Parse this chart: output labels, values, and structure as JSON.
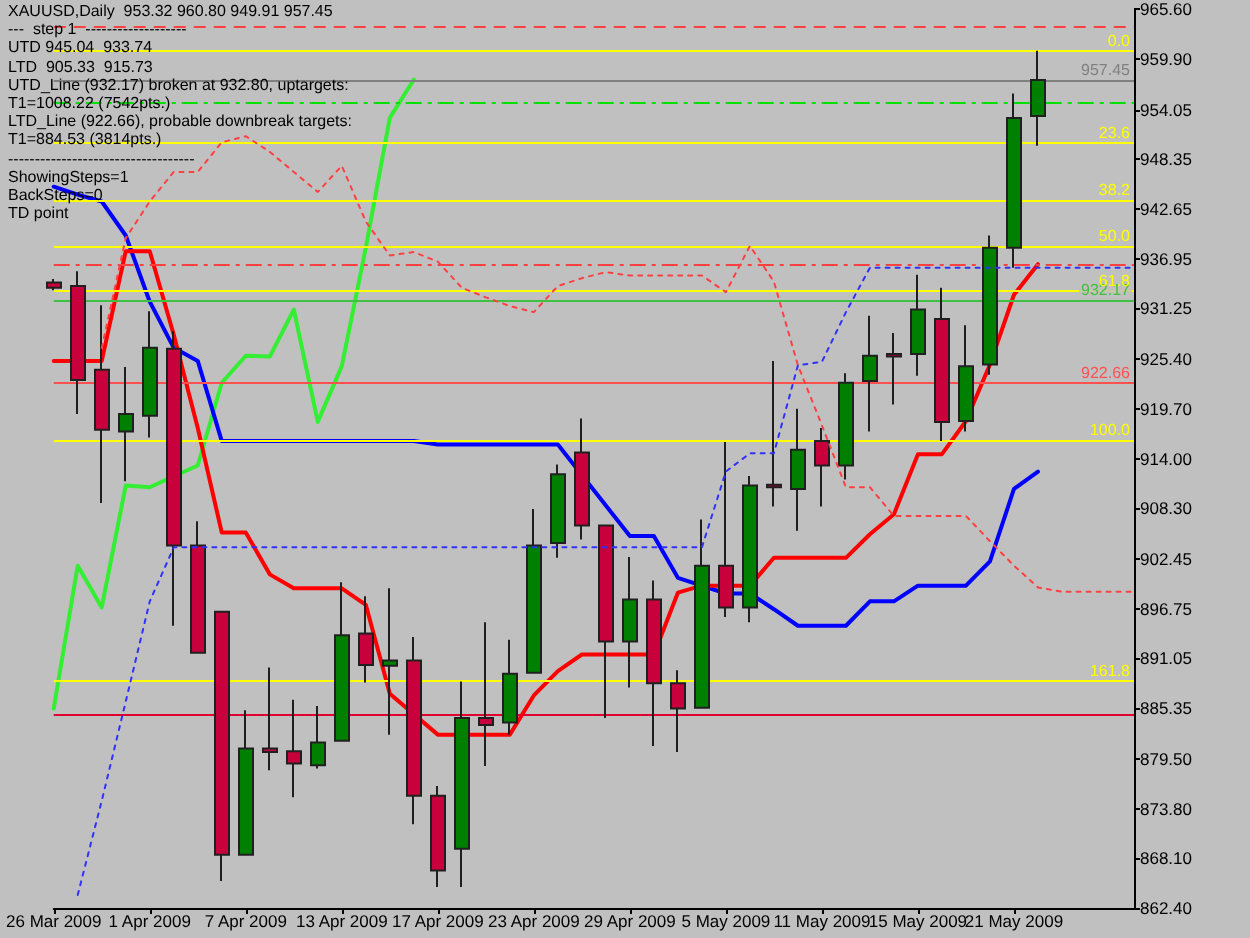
{
  "chart_data": {
    "type": "candlestick",
    "title": "XAUUSD,Daily  953.32 960.80 949.91 957.45",
    "annotations": [
      "---  step 1  -------------------",
      "UTD 945.04  933.74",
      "LTD  905.33  915.73",
      "UTD_Line (932.17) broken at 932.80, uptargets:",
      "T1=1008.22 (7542pts.)",
      "LTD_Line (922.66), probable downbreak targets:",
      "T1=884.53 (3814pts.)",
      "-----------------------------------",
      "ShowingSteps=1",
      "BackSteps=0",
      "TD point",
      {
        "text": "0.0",
        "y": 960.8
      },
      {
        "text": "23.6",
        "y": 950.25
      },
      {
        "text": "38.2",
        "y": 943.7
      },
      {
        "text": "50.0",
        "y": 938.45
      },
      {
        "text": "61.8",
        "y": 933.2
      },
      {
        "text": "100.0",
        "y": 916.1
      },
      {
        "text": "161.8",
        "y": 888.5
      }
    ],
    "categories": [
      "26 Mar 2009",
      null,
      null,
      null,
      "1 Apr 2009",
      null,
      null,
      null,
      "7 Apr 2009",
      null,
      null,
      null,
      "13 Apr 2009",
      null,
      null,
      null,
      "17 Apr 2009",
      null,
      null,
      null,
      "23 Apr 2009",
      null,
      null,
      null,
      "29 Apr 2009",
      null,
      null,
      null,
      "5 May 2009",
      null,
      null,
      null,
      "11 May 2009",
      null,
      null,
      null,
      "15 May 2009",
      null,
      null,
      null,
      "21 May 2009",
      null,
      null,
      null,
      null,
      null
    ],
    "ylim": [
      862.4,
      965.6
    ],
    "yticks": [
      {
        "value": 965.6,
        "label": "965.60"
      },
      {
        "value": 959.9,
        "label": "959.90"
      },
      {
        "value": 954.05,
        "label": "954.05"
      },
      {
        "value": 948.35,
        "label": "948.35"
      },
      {
        "value": 942.65,
        "label": "942.65"
      },
      {
        "value": 936.95,
        "label": "936.95"
      },
      {
        "value": 931.25,
        "label": "931.25"
      },
      {
        "value": 925.4,
        "label": "925.40"
      },
      {
        "value": 919.7,
        "label": "919.70"
      },
      {
        "value": 914.0,
        "label": "914.00"
      },
      {
        "value": 908.3,
        "label": "908.30"
      },
      {
        "value": 902.45,
        "label": "902.45"
      },
      {
        "value": 896.75,
        "label": "896.75"
      },
      {
        "value": 891.05,
        "label": "891.05"
      },
      {
        "value": 885.35,
        "label": "885.35"
      },
      {
        "value": 879.5,
        "label": "879.50"
      },
      {
        "value": 873.8,
        "label": "873.80"
      },
      {
        "value": 868.1,
        "label": "868.10"
      },
      {
        "value": 862.4,
        "label": "862.40"
      }
    ],
    "marker": "none",
    "ref_lines": [
      {
        "axis": "y",
        "value": 963.5,
        "color": "#ff4040",
        "line_style": "dashed"
      },
      {
        "axis": "y",
        "value": 960.8,
        "color": "#ffff00"
      },
      {
        "axis": "y",
        "value": 957.45,
        "label": "957.45",
        "color": "#808080"
      },
      {
        "axis": "y",
        "value": 954.8,
        "color": "#00e000",
        "line_style": "dashdot"
      },
      {
        "axis": "y",
        "value": 950.25,
        "color": "#ffff00"
      },
      {
        "axis": "y",
        "value": 943.7,
        "color": "#ffff00"
      },
      {
        "axis": "y",
        "value": 938.45,
        "color": "#ffff00"
      },
      {
        "axis": "y",
        "value": 936.2,
        "color": "#ff4040",
        "line_style": "dashdot"
      },
      {
        "axis": "y",
        "value": 933.2,
        "color": "#ffff00"
      },
      {
        "axis": "y",
        "value": 932.17,
        "label": "932.17",
        "color": "#40c040"
      },
      {
        "axis": "y",
        "value": 922.66,
        "label": "922.66",
        "color": "#ff5050"
      },
      {
        "axis": "y",
        "value": 916.1,
        "color": "#ffff00"
      },
      {
        "axis": "y",
        "value": 888.5,
        "color": "#ffff00"
      },
      {
        "axis": "y",
        "value": 884.53,
        "color": "#e00030"
      }
    ],
    "series": [
      {
        "type": "line",
        "color": "#ff4040",
        "line_style": "dotted",
        "values": [
          null,
          null,
          926.7,
          939.3,
          943.5,
          946.9,
          946.9,
          950.3,
          951.0,
          949.2,
          946.9,
          944.6,
          947.6,
          941.2,
          937.3,
          937.7,
          936.6,
          933.6,
          932.5,
          931.5,
          930.8,
          933.8,
          934.7,
          935.4,
          935.0,
          935.0,
          935.0,
          935.0,
          933.1,
          938.4,
          934.3,
          924.7,
          917.8,
          910.7,
          910.7,
          907.4,
          907.4,
          907.4,
          907.4,
          904.5,
          901.7,
          899.2,
          898.7,
          898.7,
          898.7,
          898.7
        ]
      },
      {
        "type": "line",
        "color": "#3030ff",
        "line_style": "dotted",
        "values": [
          null,
          863.9,
          874.7,
          886.1,
          897.6,
          903.8,
          903.8,
          903.8,
          903.8,
          903.8,
          903.8,
          903.8,
          903.8,
          903.8,
          903.8,
          903.8,
          903.8,
          903.8,
          903.8,
          903.8,
          903.8,
          903.8,
          903.8,
          903.8,
          903.8,
          903.8,
          903.8,
          903.8,
          912.5,
          914.6,
          914.6,
          924.7,
          925.1,
          930.8,
          935.9,
          935.9,
          935.9,
          935.9,
          935.9,
          935.9,
          935.9,
          935.9,
          935.9,
          935.9,
          935.9,
          935.9
        ]
      },
      {
        "type": "line",
        "color": "#33ee33",
        "line_style": "solid",
        "values": [
          885.3,
          901.7,
          896.9,
          910.9,
          910.7,
          null,
          913.2,
          922.7,
          925.8,
          925.7,
          931.1,
          918.2,
          924.6,
          938.2,
          953.1,
          957.5,
          null,
          null,
          null,
          null,
          null,
          null,
          null,
          null,
          null,
          null,
          null,
          null,
          null,
          null,
          null,
          null,
          null,
          null,
          null,
          null,
          null,
          null,
          null,
          null,
          null,
          null,
          null,
          null,
          null,
          null
        ]
      },
      {
        "type": "line",
        "color": "#0000ff",
        "line_style": "solid",
        "values": [
          945.2,
          944.3,
          943.5,
          939.6,
          932.0,
          926.7,
          925.2,
          916.0,
          916.0,
          916.0,
          916.0,
          916.0,
          916.0,
          916.0,
          916.0,
          916.0,
          915.6,
          915.6,
          915.6,
          915.6,
          915.6,
          915.6,
          null,
          null,
          905.1,
          905.1,
          900.3,
          null,
          898.5,
          898.5,
          896.7,
          894.8,
          894.8,
          894.8,
          897.6,
          897.6,
          899.4,
          899.4,
          899.4,
          902.2,
          910.5,
          912.5,
          null,
          null,
          null,
          null
        ]
      },
      {
        "type": "line",
        "color": "#ff0000",
        "line_style": "solid",
        "values": [
          925.2,
          925.2,
          925.2,
          937.8,
          937.8,
          928.2,
          917.5,
          905.5,
          905.5,
          900.7,
          899.1,
          899.1,
          899.1,
          897.2,
          887.0,
          null,
          882.3,
          882.3,
          882.3,
          882.3,
          886.8,
          889.6,
          891.5,
          891.5,
          891.5,
          891.5,
          898.6,
          899.4,
          899.4,
          899.4,
          902.6,
          902.6,
          902.6,
          902.6,
          905.3,
          907.6,
          914.5,
          914.5,
          918.3,
          924.8,
          932.8,
          936.3,
          null,
          null,
          null,
          null
        ]
      },
      {
        "ohlc": [
          [
            934.2,
            934.6,
            933.3,
            933.6
          ],
          [
            933.8,
            935.5,
            919.1,
            923.0
          ],
          [
            924.2,
            931.6,
            908.9,
            917.3
          ],
          [
            917.1,
            924.5,
            911.4,
            919.1
          ],
          [
            918.9,
            930.9,
            916.4,
            926.7
          ],
          [
            926.6,
            928.6,
            894.8,
            904.0
          ],
          [
            904.0,
            906.8,
            891.7,
            891.7
          ],
          [
            896.4,
            896.5,
            865.5,
            868.5
          ],
          [
            868.5,
            885.1,
            868.5,
            880.7
          ],
          [
            880.7,
            890.0,
            878.2,
            880.3
          ],
          [
            880.4,
            886.3,
            875.1,
            879.0
          ],
          [
            878.8,
            885.6,
            878.4,
            881.4
          ],
          [
            881.6,
            899.8,
            881.5,
            893.7
          ],
          [
            893.9,
            898.2,
            888.3,
            890.3
          ],
          [
            890.2,
            899.1,
            882.3,
            890.8
          ],
          [
            890.8,
            893.5,
            872.0,
            875.3
          ],
          [
            875.3,
            876.4,
            864.8,
            866.7
          ],
          [
            869.2,
            888.4,
            864.8,
            884.2
          ],
          [
            884.2,
            895.2,
            878.7,
            883.4
          ],
          [
            883.7,
            893.2,
            882.3,
            889.3
          ],
          [
            889.4,
            908.2,
            889.4,
            904.0
          ],
          [
            904.3,
            913.3,
            902.6,
            912.2
          ],
          [
            914.7,
            918.6,
            904.7,
            906.3
          ],
          [
            906.3,
            906.3,
            884.2,
            893.0
          ],
          [
            893.0,
            902.7,
            887.7,
            897.8
          ],
          [
            897.8,
            900.0,
            881.0,
            888.2
          ],
          [
            888.2,
            889.7,
            880.3,
            885.3
          ],
          [
            885.4,
            907.0,
            885.3,
            901.7
          ],
          [
            901.7,
            915.9,
            895.8,
            896.9
          ],
          [
            896.9,
            912.0,
            895.2,
            910.9
          ],
          [
            911.0,
            925.2,
            908.5,
            910.7
          ],
          [
            910.5,
            919.7,
            905.7,
            915.0
          ],
          [
            916.0,
            917.5,
            908.5,
            913.2
          ],
          [
            913.2,
            923.8,
            911.6,
            922.7
          ],
          [
            922.9,
            930.4,
            917.1,
            925.8
          ],
          [
            926.0,
            928.4,
            920.2,
            925.7
          ],
          [
            926.0,
            935.1,
            923.5,
            931.1
          ],
          [
            930.0,
            933.6,
            916.0,
            918.2
          ],
          [
            918.3,
            929.3,
            917.1,
            924.6
          ],
          [
            924.8,
            939.6,
            923.6,
            938.2
          ],
          [
            938.2,
            955.9,
            935.9,
            953.1
          ],
          [
            953.32,
            960.8,
            949.91,
            957.45
          ],
          null,
          null,
          null,
          null
        ],
        "colors": [
          "#c8003c",
          "#c8003c",
          "#c8003c",
          "#008000",
          "#008000",
          "#c8003c",
          "#c8003c",
          "#c8003c",
          "#008000",
          "#c8003c",
          "#c8003c",
          "#008000",
          "#008000",
          "#c8003c",
          "#008000",
          "#c8003c",
          "#c8003c",
          "#008000",
          "#c8003c",
          "#008000",
          "#008000",
          "#008000",
          "#c8003c",
          "#c8003c",
          "#008000",
          "#c8003c",
          "#c8003c",
          "#008000",
          "#c8003c",
          "#008000",
          "#c8003c",
          "#008000",
          "#c8003c",
          "#008000",
          "#008000",
          "#c8003c",
          "#008000",
          "#c8003c",
          "#008000",
          "#008000",
          "#008000",
          "#008000",
          null,
          null,
          null,
          null
        ]
      }
    ]
  }
}
